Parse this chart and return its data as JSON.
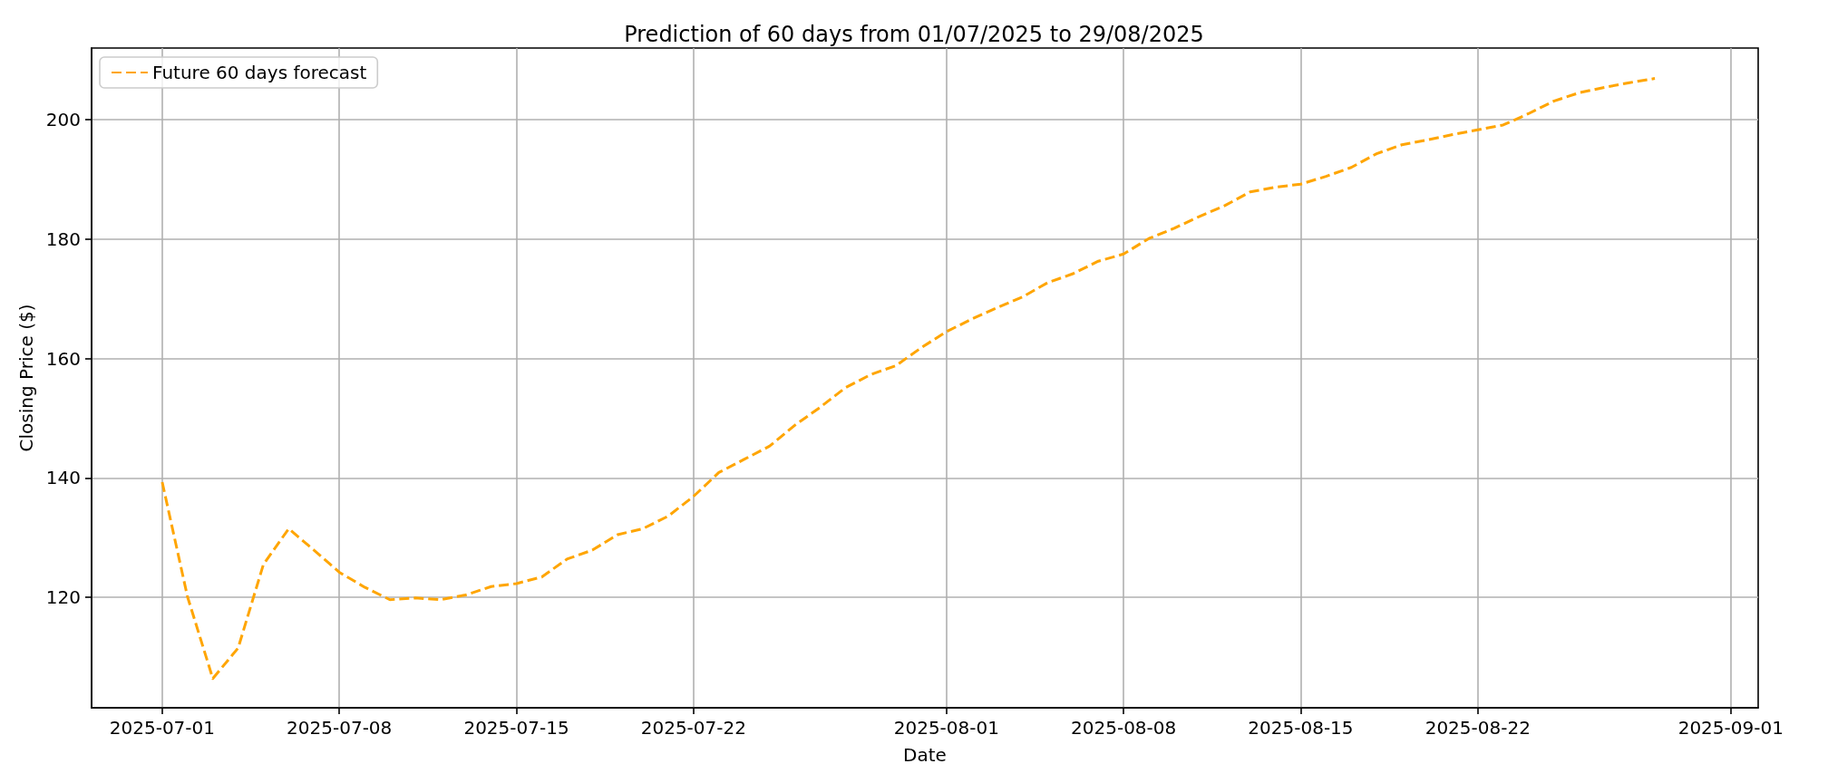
{
  "chart_data": {
    "type": "line",
    "title": "Prediction of 60 days from 01/07/2025 to 29/08/2025",
    "xlabel": "Date",
    "ylabel": "Closing Price ($)",
    "x": [
      "2025-07-01",
      "2025-07-02",
      "2025-07-03",
      "2025-07-04",
      "2025-07-05",
      "2025-07-06",
      "2025-07-07",
      "2025-07-08",
      "2025-07-09",
      "2025-07-10",
      "2025-07-11",
      "2025-07-12",
      "2025-07-13",
      "2025-07-14",
      "2025-07-15",
      "2025-07-16",
      "2025-07-17",
      "2025-07-18",
      "2025-07-19",
      "2025-07-20",
      "2025-07-21",
      "2025-07-22",
      "2025-07-23",
      "2025-07-24",
      "2025-07-25",
      "2025-07-26",
      "2025-07-27",
      "2025-07-28",
      "2025-07-29",
      "2025-07-30",
      "2025-07-31",
      "2025-08-01",
      "2025-08-02",
      "2025-08-03",
      "2025-08-04",
      "2025-08-05",
      "2025-08-06",
      "2025-08-07",
      "2025-08-08",
      "2025-08-09",
      "2025-08-10",
      "2025-08-11",
      "2025-08-12",
      "2025-08-13",
      "2025-08-14",
      "2025-08-15",
      "2025-08-16",
      "2025-08-17",
      "2025-08-18",
      "2025-08-19",
      "2025-08-20",
      "2025-08-21",
      "2025-08-22",
      "2025-08-23",
      "2025-08-24",
      "2025-08-25",
      "2025-08-26",
      "2025-08-27",
      "2025-08-28",
      "2025-08-29"
    ],
    "series": [
      {
        "name": "Future 60 days forecast",
        "color": "#ffa500",
        "values": [
          139.3,
          120.1,
          106.4,
          111.5,
          125.5,
          131.5,
          127.9,
          124.2,
          121.7,
          119.6,
          119.9,
          119.6,
          120.4,
          121.8,
          122.3,
          123.4,
          126.4,
          127.9,
          130.5,
          131.5,
          133.6,
          136.9,
          140.9,
          143.1,
          145.3,
          148.8,
          151.8,
          155.1,
          157.3,
          158.8,
          161.8,
          164.5,
          166.6,
          168.5,
          170.3,
          172.7,
          174.2,
          176.3,
          177.5,
          180.1,
          181.8,
          183.8,
          185.6,
          187.9,
          188.7,
          189.2,
          190.5,
          192.0,
          194.3,
          195.8,
          196.6,
          197.5,
          198.3,
          199.1,
          201.0,
          203.1,
          204.5,
          205.4,
          206.2,
          206.9
        ]
      }
    ],
    "xlim": [
      "2025-06-28T05:00",
      "2025-09-02T02:00"
    ],
    "xticks": [
      "2025-07-01",
      "2025-07-08",
      "2025-07-15",
      "2025-07-22",
      "2025-08-01",
      "2025-08-08",
      "2025-08-15",
      "2025-08-22",
      "2025-09-01"
    ],
    "ylim": [
      101.5,
      212.0
    ],
    "yticks": [
      120,
      140,
      160,
      180,
      200
    ],
    "grid": true,
    "legend": "top left",
    "line_style": "dashed",
    "marker": "none"
  }
}
